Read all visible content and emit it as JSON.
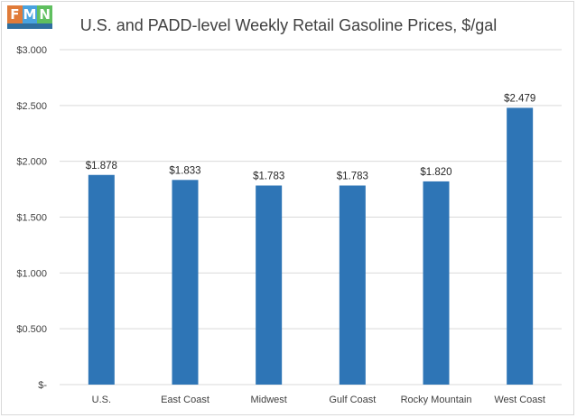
{
  "logo": {
    "letters": [
      "F",
      "M",
      "N"
    ],
    "colors": [
      "#e07b39",
      "#4aa3df",
      "#5fbf5f"
    ],
    "bar_color": "#2f6f9f"
  },
  "chart_data": {
    "type": "bar",
    "title": "U.S. and PADD-level Weekly Retail Gasoline Prices, $/gal",
    "categories": [
      "U.S.",
      "East Coast",
      "Midwest",
      "Gulf Coast",
      "Rocky Mountain",
      "West Coast"
    ],
    "values": [
      1.878,
      1.833,
      1.783,
      1.783,
      1.82,
      2.479
    ],
    "data_labels": [
      "$1.878",
      "$1.833",
      "$1.783",
      "$1.783",
      "$1.820",
      "$2.479"
    ],
    "y_ticks": [
      0,
      0.5,
      1.0,
      1.5,
      2.0,
      2.5,
      3.0
    ],
    "y_tick_labels": [
      "$-",
      "$0.500",
      "$1.000",
      "$1.500",
      "$2.000",
      "$2.500",
      "$3.000"
    ],
    "ylim": [
      0,
      3.0
    ],
    "grid": true,
    "legend": "none",
    "bar_color": "#2e75b6",
    "grid_color": "#d9d9d9"
  }
}
